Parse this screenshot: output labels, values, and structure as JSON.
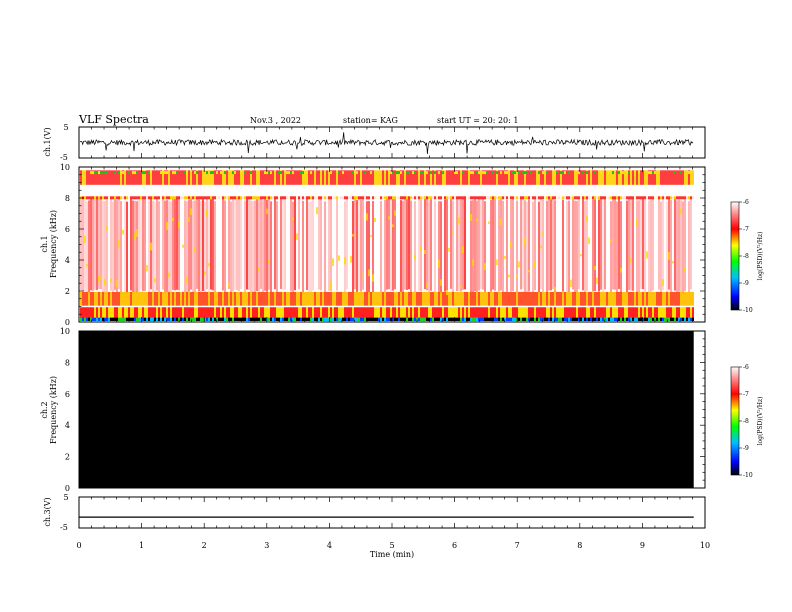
{
  "header": {
    "title": "VLF Spectra",
    "date": "Nov.3 , 2022",
    "station": "station= KAG",
    "start": "start UT = 20: 20: 1"
  },
  "chart_data": [
    {
      "type": "line",
      "name": "ch1-waveform",
      "ylabel": "ch.1(V)",
      "ylim": [
        -5,
        5
      ],
      "yticks": [
        "5",
        "-5"
      ],
      "xlim": [
        0,
        10
      ],
      "note_baseline": 0
    },
    {
      "type": "heatmap",
      "name": "ch1-spectrogram",
      "ylabel": "ch.1\nFrequency (kHz)",
      "ylim": [
        0,
        10
      ],
      "yticks": [
        "0",
        "2",
        "4",
        "6",
        "8",
        "10"
      ],
      "xlim": [
        0,
        10
      ],
      "colorbar": {
        "label": "log(PSD)(V²/Hz)",
        "range": [
          -10,
          -6
        ],
        "ticks": [
          "-6",
          "-7",
          "-8",
          "-9",
          "-10"
        ]
      }
    },
    {
      "type": "heatmap",
      "name": "ch2-spectrogram",
      "ylabel": "ch.2\nFrequency (kHz)",
      "ylim": [
        0,
        10
      ],
      "yticks": [
        "0",
        "2",
        "4",
        "6",
        "8",
        "10"
      ],
      "xlim": [
        0,
        10
      ],
      "fill": "#000000",
      "colorbar": {
        "label": "log(PSD)(V²/Hz)",
        "range": [
          -10,
          -6
        ],
        "ticks": [
          "-6",
          "-7",
          "-8",
          "-9",
          "-10"
        ]
      }
    },
    {
      "type": "line",
      "name": "ch3-waveform",
      "ylabel": "ch.3(V)",
      "ylim": [
        -5,
        5
      ],
      "yticks": [
        "5",
        "-5"
      ],
      "xlim": [
        0,
        10
      ],
      "flat_value": -1.5
    }
  ],
  "xaxis": {
    "label": "Time (min)",
    "ticks": [
      "0",
      "1",
      "2",
      "3",
      "4",
      "5",
      "6",
      "7",
      "8",
      "9",
      "10"
    ],
    "range": [
      0,
      10
    ],
    "data_end": 9.82
  }
}
